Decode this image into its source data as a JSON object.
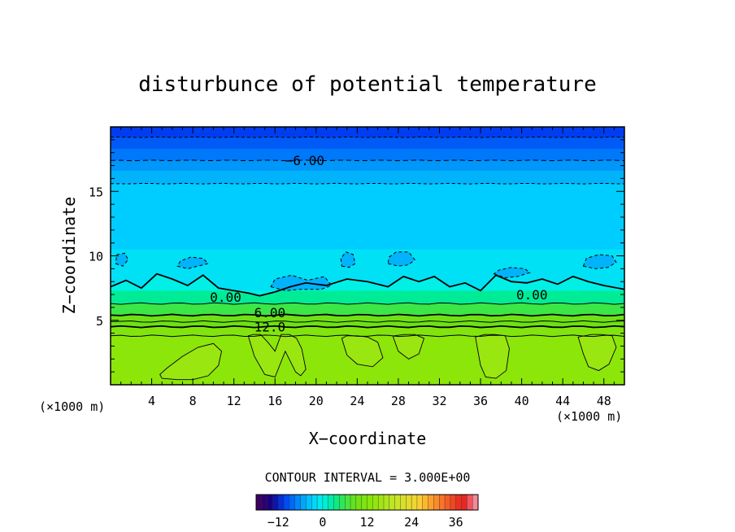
{
  "chart_data": {
    "type": "heatmap",
    "title": "disturbunce of potential temperature",
    "xlabel": "X−coordinate",
    "ylabel": "Z−coordinate",
    "x_unit_left": "(×1000 m)",
    "x_unit_right": "(×1000 m)",
    "xlim": [
      0,
      50
    ],
    "ylim": [
      0,
      20
    ],
    "x_ticks": [
      4,
      8,
      12,
      16,
      20,
      24,
      28,
      32,
      36,
      40,
      44,
      48
    ],
    "x_tick_labels": [
      "4",
      "8",
      "12",
      "16",
      "20",
      "24",
      "28",
      "32",
      "36",
      "40",
      "44",
      "48"
    ],
    "y_ticks": [
      5,
      10,
      15
    ],
    "y_tick_labels": [
      "5",
      "10",
      "15"
    ],
    "contour_interval_text": "CONTOUR INTERVAL = 3.000E+00",
    "contour_labels": [
      {
        "text": "−6.00",
        "x": 18.9,
        "z": 17.4
      },
      {
        "text": "0.00",
        "x": 11.2,
        "z": 6.8
      },
      {
        "text": "0.00",
        "x": 41.0,
        "z": 7.0
      },
      {
        "text": "6.00",
        "x": 15.5,
        "z": 5.6
      },
      {
        "text": "12.0",
        "x": 15.5,
        "z": 4.5
      }
    ],
    "colorbar": {
      "min": -18,
      "max": 42,
      "tick_values": [
        -12,
        0,
        12,
        24,
        36
      ],
      "tick_labels": [
        "−12",
        "0",
        "12",
        "24",
        "36"
      ]
    },
    "value_bands": [
      {
        "z0": 19.2,
        "z1": 20.0,
        "value": -10.5
      },
      {
        "z0": 18.3,
        "z1": 19.2,
        "value": -9.0
      },
      {
        "z0": 17.4,
        "z1": 18.3,
        "value": -7.5
      },
      {
        "z0": 16.6,
        "z1": 17.4,
        "value": -6.0
      },
      {
        "z0": 15.6,
        "z1": 16.6,
        "value": -4.5
      },
      {
        "z0": 10.5,
        "z1": 15.6,
        "value": -3.0
      },
      {
        "z0": 8.8,
        "z1": 10.5,
        "value": -1.5
      },
      {
        "z0": 7.3,
        "z1": 8.8,
        "value": 0.0
      },
      {
        "z0": 6.3,
        "z1": 7.3,
        "value": 3.0
      },
      {
        "z0": 5.4,
        "z1": 6.3,
        "value": 6.0
      },
      {
        "z0": 4.5,
        "z1": 5.4,
        "value": 9.0
      },
      {
        "z0": 3.8,
        "z1": 4.5,
        "value": 12.0
      },
      {
        "z0": 0.0,
        "z1": 3.8,
        "value": 13.5
      }
    ],
    "contour_levels": [
      {
        "value": -9,
        "z": 19.2,
        "style": "dashed"
      },
      {
        "value": -6,
        "z": 17.4,
        "style": "dashed"
      },
      {
        "value": -3,
        "z": 15.6,
        "style": "dashed"
      },
      {
        "value": 3,
        "z": 6.3,
        "style": "solid"
      },
      {
        "value": 6,
        "z": 5.4,
        "style": "solid"
      },
      {
        "value": 9,
        "z": 4.9,
        "style": "solid"
      },
      {
        "value": 12,
        "z": 4.5,
        "style": "solid"
      },
      {
        "value": 15,
        "z": 3.8,
        "style": "solid"
      }
    ],
    "zero_contour": {
      "x": [
        0,
        1.5,
        3,
        4.5,
        6,
        7.5,
        9,
        10.5,
        12,
        13.5,
        14.5,
        16,
        17.5,
        19,
        21,
        23,
        25,
        27,
        28.5,
        30,
        31.5,
        33,
        34.5,
        36,
        37.5,
        39,
        40.5,
        42,
        43.5,
        45,
        46.5,
        48,
        50
      ],
      "z": [
        7.6,
        8.1,
        7.5,
        8.6,
        8.2,
        7.7,
        8.5,
        7.5,
        7.3,
        7.1,
        6.9,
        7.2,
        7.6,
        7.9,
        7.7,
        8.2,
        8.0,
        7.6,
        8.4,
        8.0,
        8.4,
        7.6,
        7.9,
        7.3,
        8.5,
        8.0,
        7.9,
        8.2,
        7.8,
        8.4,
        8.0,
        7.7,
        7.4
      ]
    },
    "warm_plumes": [
      {
        "x": [
          5,
          6.5,
          8,
          9.5,
          10.5,
          10.8,
          10,
          8.5,
          7,
          5.5,
          4.8
        ],
        "z": [
          0.5,
          0.4,
          0.4,
          0.7,
          1.5,
          2.6,
          3.2,
          2.9,
          2.2,
          1.3,
          0.8
        ]
      },
      {
        "x": [
          13.5,
          14,
          15,
          16,
          16.5,
          17,
          17.5,
          18,
          18.5,
          19,
          18.6,
          18.1,
          17.4,
          16.6,
          16,
          15.3,
          14.6,
          13.9,
          13.4
        ],
        "z": [
          3.5,
          2.2,
          0.8,
          0.6,
          1.6,
          2.6,
          1.8,
          1.0,
          0.7,
          1.2,
          2.8,
          3.6,
          3.9,
          3.9,
          2.6,
          3.3,
          3.9,
          3.9,
          3.8
        ]
      },
      {
        "x": [
          22.5,
          23,
          24,
          25.5,
          26.5,
          26,
          25,
          24,
          23
        ],
        "z": [
          3.6,
          2.3,
          1.6,
          1.4,
          2.1,
          3.3,
          3.7,
          3.8,
          3.8
        ]
      },
      {
        "x": [
          27.5,
          28,
          29,
          30,
          30.5,
          29.6,
          28.6,
          27.6
        ],
        "z": [
          3.7,
          2.6,
          2.0,
          2.4,
          3.6,
          3.9,
          3.9,
          3.8
        ]
      },
      {
        "x": [
          35.5,
          36,
          36.5,
          37.5,
          38.5,
          38.8,
          38.4,
          37.4,
          36.4
        ],
        "z": [
          3.7,
          1.5,
          0.6,
          0.5,
          1.1,
          2.8,
          3.8,
          3.9,
          3.9
        ]
      },
      {
        "x": [
          45.5,
          46,
          46.5,
          47.5,
          48.5,
          49.2,
          48.8,
          47.8,
          46.8
        ],
        "z": [
          3.7,
          2.4,
          1.4,
          1.1,
          1.6,
          2.9,
          3.8,
          3.9,
          3.9
        ]
      }
    ],
    "cold_patches": [
      {
        "x": [
          0.5,
          1.2,
          1.7,
          1.4,
          0.6
        ],
        "z": [
          9.4,
          9.2,
          9.7,
          10.2,
          10.1
        ]
      },
      {
        "x": [
          6.5,
          7.5,
          8.5,
          9.5,
          9.0,
          7.8,
          6.8
        ],
        "z": [
          9.2,
          9.0,
          9.2,
          9.4,
          9.8,
          9.9,
          9.6
        ]
      },
      {
        "x": [
          15.6,
          17.0,
          18.5,
          20.5,
          21.5,
          20.8,
          19.2,
          17.6,
          16.0
        ],
        "z": [
          7.6,
          7.3,
          7.4,
          7.4,
          7.7,
          8.4,
          8.1,
          8.5,
          8.2
        ]
      },
      {
        "x": [
          22.5,
          23.2,
          23.8,
          23.6,
          22.9,
          22.4
        ],
        "z": [
          9.2,
          9.1,
          9.4,
          10.1,
          10.3,
          9.8
        ]
      },
      {
        "x": [
          27.0,
          28.0,
          29.0,
          29.6,
          29.0,
          27.8,
          27.1
        ],
        "z": [
          9.4,
          9.2,
          9.3,
          9.7,
          10.3,
          10.3,
          9.9
        ]
      },
      {
        "x": [
          37.3,
          38.4,
          39.6,
          40.8,
          40.3,
          39.0,
          37.8
        ],
        "z": [
          8.6,
          8.3,
          8.4,
          8.7,
          9.0,
          9.1,
          8.9
        ]
      },
      {
        "x": [
          46.0,
          47.2,
          48.4,
          49.2,
          48.8,
          47.5,
          46.3
        ],
        "z": [
          9.2,
          9.0,
          9.1,
          9.5,
          10.0,
          10.1,
          9.8
        ]
      }
    ]
  }
}
